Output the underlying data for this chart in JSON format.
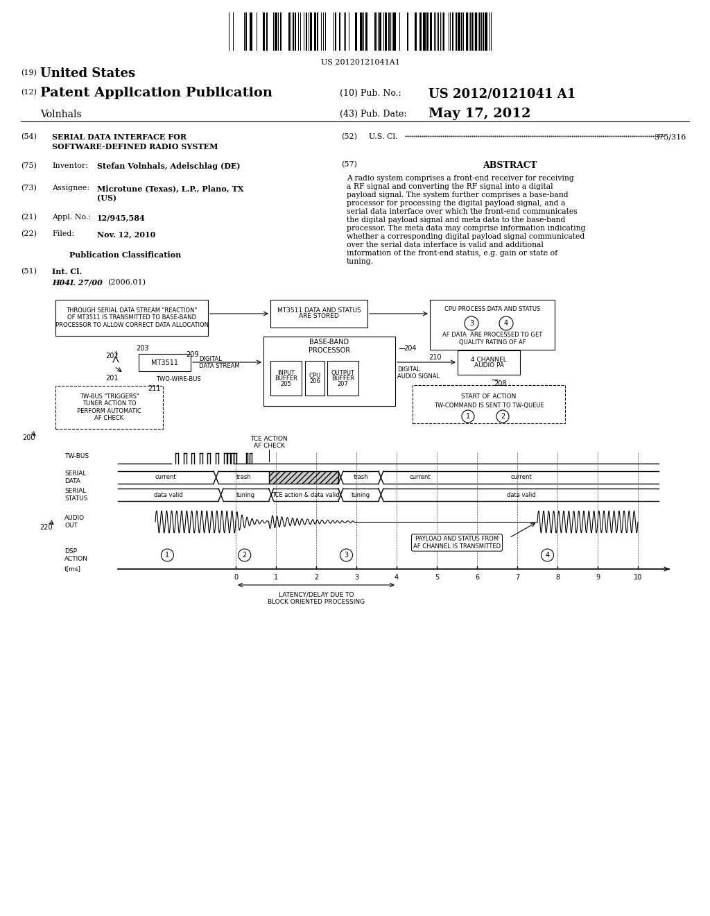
{
  "background_color": "#ffffff",
  "barcode_text": "US 20120121041A1",
  "header": {
    "country_num": "(19)",
    "country": "United States",
    "type_num": "(12)",
    "type": "Patent Application Publication",
    "pub_num_label": "(10) Pub. No.:",
    "pub_num": "US 2012/0121041 A1",
    "inventor_label": "Volnhals",
    "pub_date_label": "(43) Pub. Date:",
    "pub_date": "May 17, 2012"
  },
  "left_col": {
    "title_line1": "SERIAL DATA INTERFACE FOR",
    "title_line2": "SOFTWARE-DEFINED RADIO SYSTEM",
    "inventor_val": "Stefan Volnhals, Adelschlag (DE)",
    "assignee_val1": "Microtune (Texas), L.P., Plano, TX",
    "assignee_val2": "(US)",
    "appl_val": "12/945,584",
    "filed_val": "Nov. 12, 2010",
    "pub_class_title": "Publication Classification",
    "int_cl_val": "H04L 27/00",
    "int_cl_date": "(2006.01)"
  },
  "right_col": {
    "us_cl_val": "375/316",
    "abstract_title": "ABSTRACT",
    "abstract_text": "A radio system comprises a front-end receiver for receiving a RF signal and converting the RF signal into a digital payload signal. The system further comprises a base-band processor for processing the digital payload signal, and a serial data interface over which the front-end communicates the digital payload signal and meta data to the base-band processor. The meta data may comprise information indicating whether a corresponding digital payload signal communicated over the serial data interface is valid and additional information of the front-end status, e.g. gain or state of tuning."
  }
}
